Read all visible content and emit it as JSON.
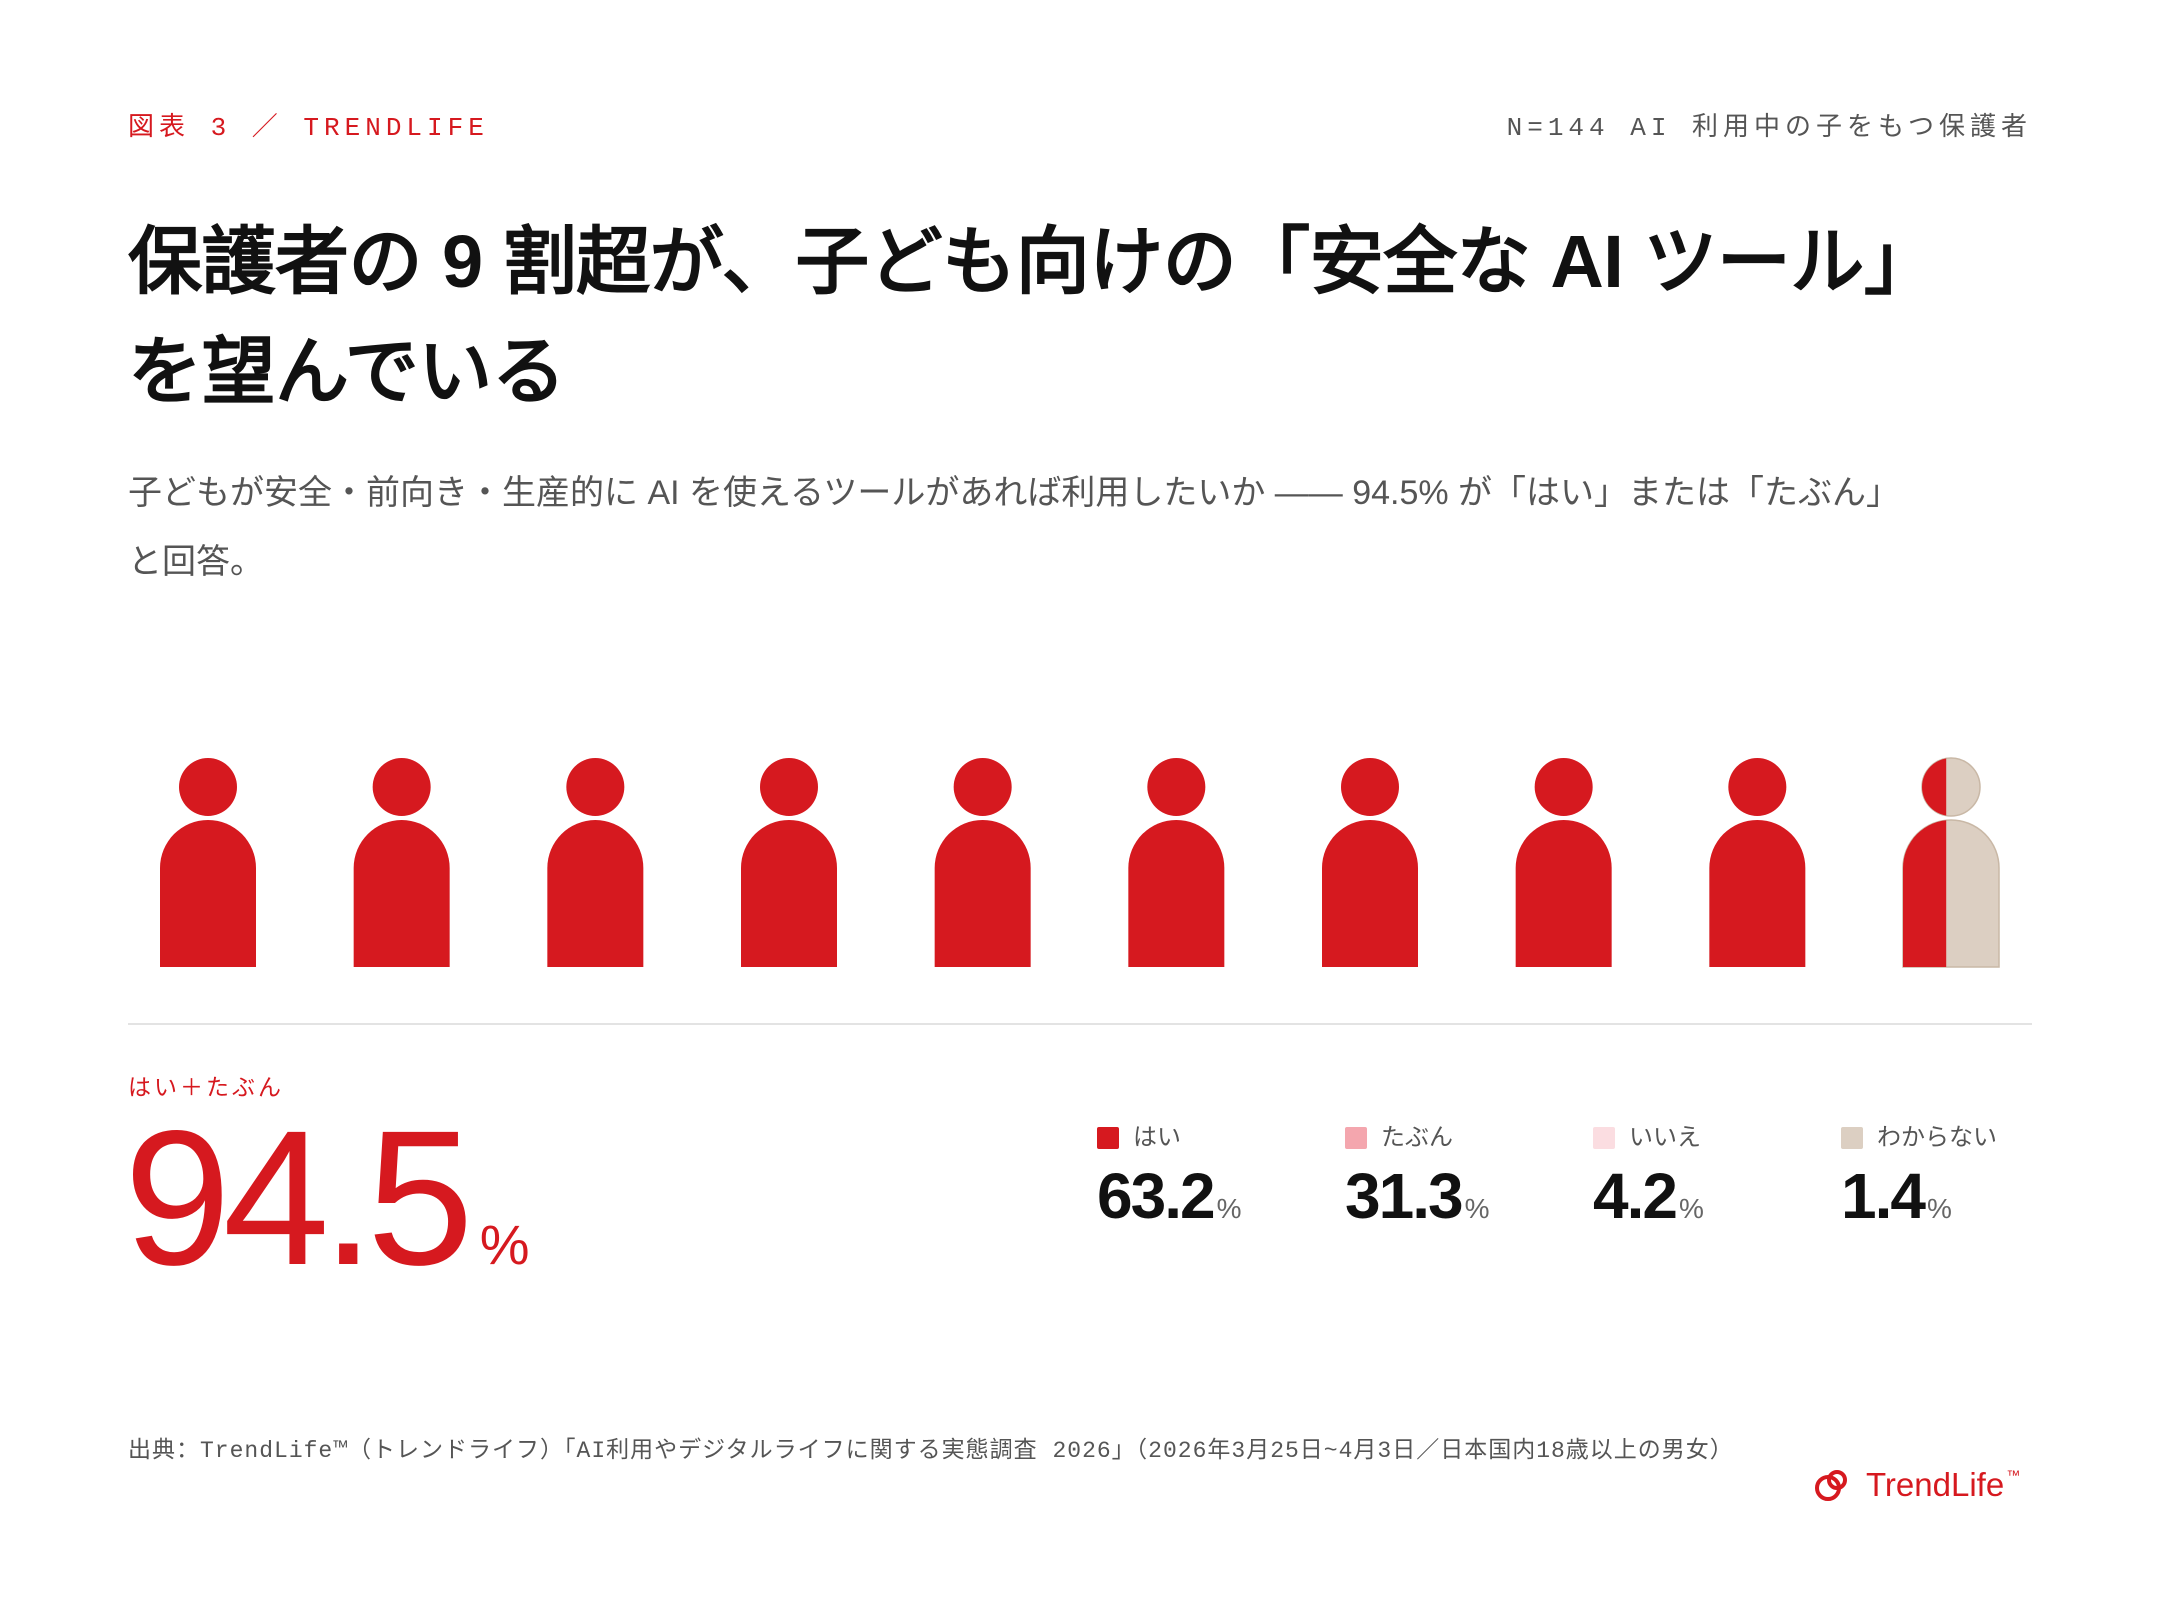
{
  "header": {
    "figure_label": "図表 3 ／ TRENDLIFE",
    "sample": "N=144 AI 利用中の子をもつ保護者"
  },
  "title_lines": [
    "保護者の 9 割超が、子ども向けの「安全な AI ツール」",
    "を望んでいる"
  ],
  "subtitle_lines": [
    "子どもが安全・前向き・生産的に AI を使えるツールがあれば利用したいか —— 94.5% が「はい」または「たぶん」",
    "と回答。"
  ],
  "chart_data": {
    "type": "bar",
    "pictogram_icon": "person-icon",
    "icon_count": 10,
    "total_label": "はい＋たぶん",
    "total_value": 94.5,
    "unit": "%",
    "categories": [
      "はい",
      "たぶん",
      "いいえ",
      "わからない"
    ],
    "values": [
      63.2,
      31.3,
      4.2,
      1.4
    ],
    "colors": [
      "#d6191f",
      "#f4a6ae",
      "#fbdde1",
      "#dccfc2"
    ],
    "pictogram_colors": {
      "filled": "#d6191f",
      "empty": "#dccfc2",
      "empty_outline": "#c9b8a6"
    }
  },
  "footer": {
    "source": "出典：TrendLife™（トレンドライフ）「AI利用やデジタルライフに関する実態調査 2026」（2026年3月25日~4月3日／日本国内18歳以上の男女）",
    "logo_icon": "trendlife-logo-icon",
    "logo_text": "TrendLife",
    "logo_tm": "™"
  }
}
